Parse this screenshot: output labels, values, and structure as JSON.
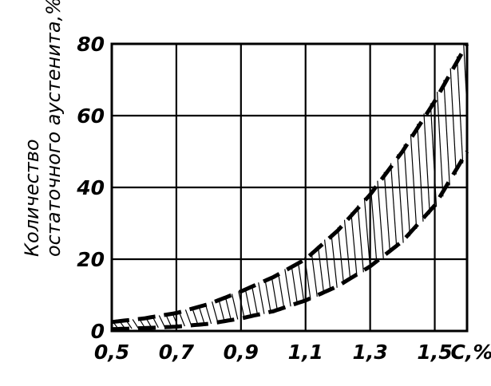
{
  "chart_data": {
    "type": "area",
    "title": "",
    "xlabel": "С,%",
    "ylabel_line1": "Количество",
    "ylabel_line2": "остаточного аустенита,%",
    "xlim": [
      0.5,
      1.6
    ],
    "ylim": [
      0,
      80
    ],
    "x_ticks": [
      0.5,
      0.7,
      0.9,
      1.1,
      1.3,
      1.5
    ],
    "x_tick_labels": [
      "0,5",
      "0,7",
      "0,9",
      "1,1",
      "1,3",
      "1,5"
    ],
    "y_ticks": [
      0,
      20,
      40,
      60,
      80
    ],
    "y_tick_labels": [
      "0",
      "20",
      "40",
      "60",
      "80"
    ],
    "grid": true,
    "band": {
      "fill": "hatched",
      "upper": {
        "x": [
          0.5,
          0.6,
          0.7,
          0.8,
          0.9,
          1.0,
          1.1,
          1.2,
          1.3,
          1.4,
          1.5,
          1.6
        ],
        "y": [
          2.5,
          3.5,
          5,
          7.5,
          11,
          15,
          20,
          28,
          38,
          50,
          64,
          80
        ]
      },
      "lower": {
        "x": [
          0.5,
          0.6,
          0.7,
          0.8,
          0.9,
          1.0,
          1.1,
          1.2,
          1.3,
          1.4,
          1.5,
          1.6
        ],
        "y": [
          0.5,
          0.8,
          1.2,
          2,
          3.5,
          5.5,
          8.5,
          12.5,
          18,
          25,
          35,
          50
        ]
      }
    },
    "line_style": "dashed",
    "colors": {
      "line": "#000000",
      "grid": "#000000",
      "background": "#ffffff"
    }
  }
}
